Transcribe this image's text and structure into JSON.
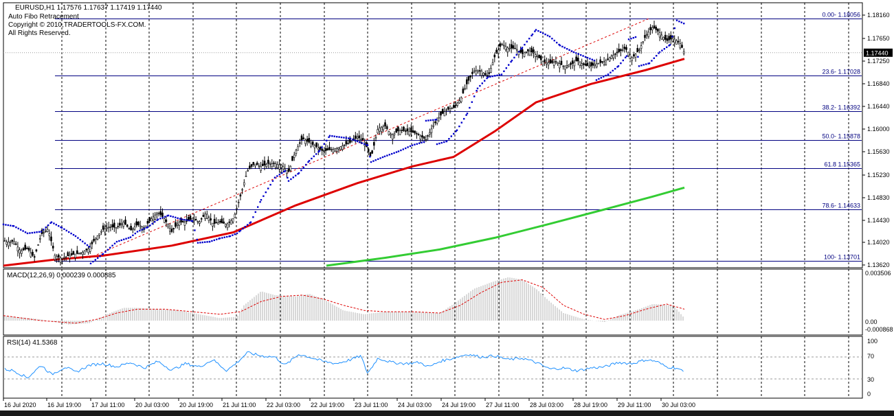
{
  "header": {
    "symbol_line": "EURUSD,H1  1.17576 1.17637 1.17419 1.17440",
    "indicator_name": "Auto Fibo Retracement",
    "copyright": "Copyright © 2010,TRADERTOOLS-FX.COM.",
    "rights": "All Rights Reserved."
  },
  "colors": {
    "fib_line": "#000080",
    "ma_fast": "#dd0000",
    "ma_slow": "#33cc33",
    "sar": "#0000cc",
    "macd_hist": "#b0b0b0",
    "macd_signal": "#dd0000",
    "rsi_line": "#1e90ff",
    "price_label_bg": "#000000"
  },
  "chart_data": [
    {
      "type": "candlestick",
      "title": "EURUSD,H1",
      "ylim": [
        1.1362,
        1.1825
      ],
      "y_ticks": [
        "1.18160",
        "1.17650",
        "1.17250",
        "1.16840",
        "1.16440",
        "1.16000",
        "1.15630",
        "1.15230",
        "1.14830",
        "1.14430",
        "1.14020",
        "1.13620"
      ],
      "current_price": "1.17440",
      "x_ticks": [
        "16 Jul 2020",
        "16 Jul 19:00",
        "17 Jul 11:00",
        "20 Jul 03:00",
        "20 Jul 19:00",
        "21 Jul 11:00",
        "22 Jul 03:00",
        "22 Jul 19:00",
        "23 Jul 11:00",
        "24 Jul 03:00",
        "24 Jul 19:00",
        "27 Jul 11:00",
        "28 Jul 03:00",
        "28 Jul 19:00",
        "29 Jul 11:00",
        "30 Jul 03:00"
      ],
      "fib_levels": [
        {
          "label": "0.00- 1.18056",
          "value": 1.18056
        },
        {
          "label": "23.6- 1.17028",
          "value": 1.17028
        },
        {
          "label": "38.2- 1.16392",
          "value": 1.16392
        },
        {
          "label": "50.0- 1.15878",
          "value": 1.15878
        },
        {
          "label": "61.8 1.15365",
          "value": 1.15365
        },
        {
          "label": "78.6- 1.14633",
          "value": 1.14633
        },
        {
          "label": "100- 1.13701",
          "value": 1.13701
        }
      ],
      "close_path": [
        [
          0,
          1.1413
        ],
        [
          10,
          1.1404
        ],
        [
          20,
          1.1406
        ],
        [
          30,
          1.1388
        ],
        [
          40,
          1.1393
        ],
        [
          50,
          1.1376
        ],
        [
          60,
          1.1418
        ],
        [
          70,
          1.1428
        ],
        [
          80,
          1.138
        ],
        [
          90,
          1.1375
        ],
        [
          100,
          1.138
        ],
        [
          110,
          1.1383
        ],
        [
          120,
          1.1386
        ],
        [
          130,
          1.1393
        ],
        [
          140,
          1.1413
        ],
        [
          150,
          1.1427
        ],
        [
          160,
          1.1432
        ],
        [
          170,
          1.143
        ],
        [
          180,
          1.144
        ],
        [
          190,
          1.1425
        ],
        [
          200,
          1.1436
        ],
        [
          210,
          1.143
        ],
        [
          220,
          1.1446
        ],
        [
          230,
          1.1458
        ],
        [
          240,
          1.1445
        ],
        [
          250,
          1.1423
        ],
        [
          260,
          1.144
        ],
        [
          270,
          1.144
        ],
        [
          280,
          1.1447
        ],
        [
          290,
          1.144
        ],
        [
          300,
          1.1457
        ],
        [
          310,
          1.1437
        ],
        [
          320,
          1.144
        ],
        [
          330,
          1.1436
        ],
        [
          340,
          1.1447
        ],
        [
          350,
          1.1487
        ],
        [
          360,
          1.1532
        ],
        [
          370,
          1.1545
        ],
        [
          380,
          1.154
        ],
        [
          390,
          1.1545
        ],
        [
          400,
          1.1545
        ],
        [
          410,
          1.1542
        ],
        [
          420,
          1.153
        ],
        [
          430,
          1.1567
        ],
        [
          440,
          1.159
        ],
        [
          450,
          1.1583
        ],
        [
          460,
          1.1576
        ],
        [
          470,
          1.1567
        ],
        [
          480,
          1.157
        ],
        [
          490,
          1.1572
        ],
        [
          500,
          1.1578
        ],
        [
          510,
          1.1583
        ],
        [
          520,
          1.1593
        ],
        [
          530,
          1.1586
        ],
        [
          540,
          1.1555
        ],
        [
          550,
          1.1608
        ],
        [
          560,
          1.1613
        ],
        [
          570,
          1.1596
        ],
        [
          580,
          1.1604
        ],
        [
          590,
          1.1604
        ],
        [
          600,
          1.1602
        ],
        [
          610,
          1.1596
        ],
        [
          620,
          1.1588
        ],
        [
          630,
          1.1612
        ],
        [
          640,
          1.163
        ],
        [
          650,
          1.1642
        ],
        [
          660,
          1.1645
        ],
        [
          670,
          1.166
        ],
        [
          680,
          1.169
        ],
        [
          690,
          1.1712
        ],
        [
          700,
          1.1712
        ],
        [
          710,
          1.17
        ],
        [
          720,
          1.1737
        ],
        [
          730,
          1.176
        ],
        [
          740,
          1.1752
        ],
        [
          750,
          1.1752
        ],
        [
          760,
          1.1742
        ],
        [
          770,
          1.1748
        ],
        [
          780,
          1.174
        ],
        [
          790,
          1.1728
        ],
        [
          800,
          1.1725
        ],
        [
          810,
          1.1728
        ],
        [
          820,
          1.172
        ],
        [
          830,
          1.1722
        ],
        [
          840,
          1.173
        ],
        [
          850,
          1.1722
        ],
        [
          860,
          1.172
        ],
        [
          870,
          1.1725
        ],
        [
          880,
          1.1728
        ],
        [
          890,
          1.1738
        ],
        [
          900,
          1.1745
        ],
        [
          910,
          1.1752
        ],
        [
          920,
          1.1735
        ],
        [
          930,
          1.1748
        ],
        [
          940,
          1.1775
        ],
        [
          950,
          1.179
        ],
        [
          960,
          1.178
        ],
        [
          970,
          1.1765
        ],
        [
          980,
          1.177
        ],
        [
          990,
          1.176
        ],
        [
          996,
          1.1744
        ]
      ],
      "ma_fast_path": [
        [
          5,
          1.1362
        ],
        [
          80,
          1.1373
        ],
        [
          150,
          1.138
        ],
        [
          250,
          1.1398
        ],
        [
          340,
          1.1422
        ],
        [
          430,
          1.147
        ],
        [
          520,
          1.151
        ],
        [
          600,
          1.154
        ],
        [
          660,
          1.1557
        ],
        [
          720,
          1.1603
        ],
        [
          780,
          1.1655
        ],
        [
          860,
          1.1688
        ],
        [
          940,
          1.1713
        ],
        [
          996,
          1.1733
        ]
      ],
      "ma_slow_path": [
        [
          475,
          1.1362
        ],
        [
          560,
          1.1376
        ],
        [
          640,
          1.1391
        ],
        [
          720,
          1.1412
        ],
        [
          800,
          1.1437
        ],
        [
          880,
          1.1463
        ],
        [
          950,
          1.1486
        ],
        [
          996,
          1.1502
        ]
      ],
      "sar_path": [
        [
          5,
          1.1436
        ],
        [
          20,
          1.1433
        ],
        [
          40,
          1.142
        ],
        [
          60,
          1.1423
        ],
        [
          75,
          1.144
        ],
        [
          90,
          1.143
        ],
        [
          110,
          1.1415
        ],
        [
          130,
          1.1396
        ],
        [
          132,
          1.1366
        ],
        [
          150,
          1.1383
        ],
        [
          170,
          1.1405
        ],
        [
          190,
          1.1413
        ],
        [
          200,
          1.1423
        ],
        [
          215,
          1.1431
        ],
        [
          230,
          1.1445
        ],
        [
          245,
          1.1452
        ],
        [
          265,
          1.1445
        ],
        [
          280,
          1.1442
        ],
        [
          288,
          1.1403
        ],
        [
          305,
          1.1405
        ],
        [
          320,
          1.1411
        ],
        [
          335,
          1.1415
        ],
        [
          345,
          1.142
        ],
        [
          350,
          1.1425
        ],
        [
          365,
          1.144
        ],
        [
          380,
          1.148
        ],
        [
          400,
          1.152
        ],
        [
          415,
          1.1532
        ],
        [
          420,
          1.1514
        ],
        [
          435,
          1.1528
        ],
        [
          450,
          1.155
        ],
        [
          465,
          1.1568
        ],
        [
          480,
          1.1595
        ],
        [
          510,
          1.159
        ],
        [
          520,
          1.1585
        ],
        [
          535,
          1.1578
        ],
        [
          540,
          1.1548
        ],
        [
          560,
          1.1558
        ],
        [
          580,
          1.1567
        ],
        [
          600,
          1.1578
        ],
        [
          620,
          1.1585
        ],
        [
          620,
          1.1622
        ],
        [
          635,
          1.1624
        ],
        [
          636,
          1.158
        ],
        [
          650,
          1.1585
        ],
        [
          665,
          1.1605
        ],
        [
          680,
          1.1635
        ],
        [
          695,
          1.168
        ],
        [
          710,
          1.17
        ],
        [
          730,
          1.1705
        ],
        [
          745,
          1.173
        ],
        [
          760,
          1.1753
        ],
        [
          775,
          1.1777
        ],
        [
          780,
          1.1785
        ],
        [
          800,
          1.1773
        ],
        [
          815,
          1.1757
        ],
        [
          835,
          1.1745
        ],
        [
          855,
          1.1735
        ],
        [
          865,
          1.173
        ],
        [
          868,
          1.1695
        ],
        [
          885,
          1.1705
        ],
        [
          900,
          1.172
        ],
        [
          912,
          1.1738
        ],
        [
          915,
          1.1768
        ],
        [
          925,
          1.1772
        ],
        [
          930,
          1.172
        ],
        [
          945,
          1.1725
        ],
        [
          960,
          1.1745
        ],
        [
          975,
          1.1758
        ],
        [
          985,
          1.1802
        ],
        [
          996,
          1.1796
        ]
      ]
    },
    {
      "type": "bar",
      "title": "MACD(12,26,9) 0.000239 0.000885",
      "ylim": [
        -0.0008,
        0.0035
      ],
      "y_ticks": [
        "0.003506",
        "0.00",
        "-0.000868"
      ],
      "hist_path": [
        [
          5,
          0.0004
        ],
        [
          60,
          0.0001
        ],
        [
          100,
          -0.0003
        ],
        [
          130,
          -0.0002
        ],
        [
          160,
          0.0006
        ],
        [
          180,
          0.001
        ],
        [
          200,
          0.001
        ],
        [
          230,
          0.0009
        ],
        [
          260,
          0.0008
        ],
        [
          290,
          0.0005
        ],
        [
          320,
          0.0002
        ],
        [
          345,
          0.0003
        ],
        [
          355,
          0.0012
        ],
        [
          380,
          0.0023
        ],
        [
          400,
          0.002
        ],
        [
          430,
          0.0019
        ],
        [
          450,
          0.0021
        ],
        [
          470,
          0.0017
        ],
        [
          500,
          0.0008
        ],
        [
          530,
          0.0005
        ],
        [
          560,
          0.0007
        ],
        [
          600,
          0.0007
        ],
        [
          640,
          0.0006
        ],
        [
          660,
          0.0013
        ],
        [
          690,
          0.0025
        ],
        [
          720,
          0.0031
        ],
        [
          740,
          0.0034
        ],
        [
          760,
          0.0032
        ],
        [
          780,
          0.0025
        ],
        [
          800,
          0.0015
        ],
        [
          820,
          0.0006
        ],
        [
          850,
          0.0001
        ],
        [
          880,
          -0.0001
        ],
        [
          900,
          0.0004
        ],
        [
          930,
          0.0009
        ],
        [
          950,
          0.0013
        ],
        [
          980,
          0.0012
        ],
        [
          996,
          0.0002
        ]
      ],
      "signal_path": [
        [
          5,
          0.0004
        ],
        [
          60,
          0.0
        ],
        [
          110,
          -0.0002
        ],
        [
          140,
          0.0001
        ],
        [
          170,
          0.0006
        ],
        [
          200,
          0.0009
        ],
        [
          240,
          0.0009
        ],
        [
          280,
          0.0007
        ],
        [
          320,
          0.0005
        ],
        [
          350,
          0.0007
        ],
        [
          380,
          0.0015
        ],
        [
          410,
          0.0019
        ],
        [
          440,
          0.002
        ],
        [
          470,
          0.0017
        ],
        [
          500,
          0.0012
        ],
        [
          530,
          0.0008
        ],
        [
          560,
          0.0007
        ],
        [
          600,
          0.0007
        ],
        [
          640,
          0.0006
        ],
        [
          670,
          0.0012
        ],
        [
          700,
          0.0022
        ],
        [
          730,
          0.003
        ],
        [
          760,
          0.0032
        ],
        [
          790,
          0.0026
        ],
        [
          820,
          0.0012
        ],
        [
          850,
          0.0005
        ],
        [
          880,
          0.0001
        ],
        [
          910,
          0.0004
        ],
        [
          940,
          0.0009
        ],
        [
          970,
          0.0013
        ],
        [
          996,
          0.0009
        ]
      ]
    },
    {
      "type": "line",
      "title": "RSI(14) 41.5368",
      "ylim": [
        0,
        100
      ],
      "y_ticks": [
        "100",
        "70",
        "30",
        "0"
      ],
      "levels": [
        70,
        30
      ],
      "rsi_path": [
        [
          5,
          48
        ],
        [
          20,
          45
        ],
        [
          40,
          32
        ],
        [
          60,
          55
        ],
        [
          75,
          38
        ],
        [
          95,
          52
        ],
        [
          110,
          42
        ],
        [
          130,
          55
        ],
        [
          150,
          58
        ],
        [
          170,
          52
        ],
        [
          190,
          60
        ],
        [
          210,
          50
        ],
        [
          230,
          62
        ],
        [
          250,
          46
        ],
        [
          270,
          58
        ],
        [
          290,
          52
        ],
        [
          310,
          65
        ],
        [
          330,
          45
        ],
        [
          345,
          60
        ],
        [
          360,
          78
        ],
        [
          380,
          72
        ],
        [
          400,
          70
        ],
        [
          415,
          55
        ],
        [
          435,
          75
        ],
        [
          450,
          70
        ],
        [
          470,
          62
        ],
        [
          490,
          58
        ],
        [
          510,
          65
        ],
        [
          525,
          72
        ],
        [
          535,
          40
        ],
        [
          550,
          68
        ],
        [
          570,
          60
        ],
        [
          590,
          58
        ],
        [
          610,
          60
        ],
        [
          625,
          52
        ],
        [
          640,
          62
        ],
        [
          660,
          68
        ],
        [
          680,
          75
        ],
        [
          700,
          70
        ],
        [
          720,
          72
        ],
        [
          740,
          65
        ],
        [
          760,
          68
        ],
        [
          780,
          60
        ],
        [
          800,
          48
        ],
        [
          820,
          50
        ],
        [
          840,
          45
        ],
        [
          860,
          50
        ],
        [
          880,
          52
        ],
        [
          900,
          60
        ],
        [
          920,
          58
        ],
        [
          940,
          65
        ],
        [
          955,
          62
        ],
        [
          970,
          52
        ],
        [
          985,
          50
        ],
        [
          996,
          42
        ]
      ]
    }
  ]
}
